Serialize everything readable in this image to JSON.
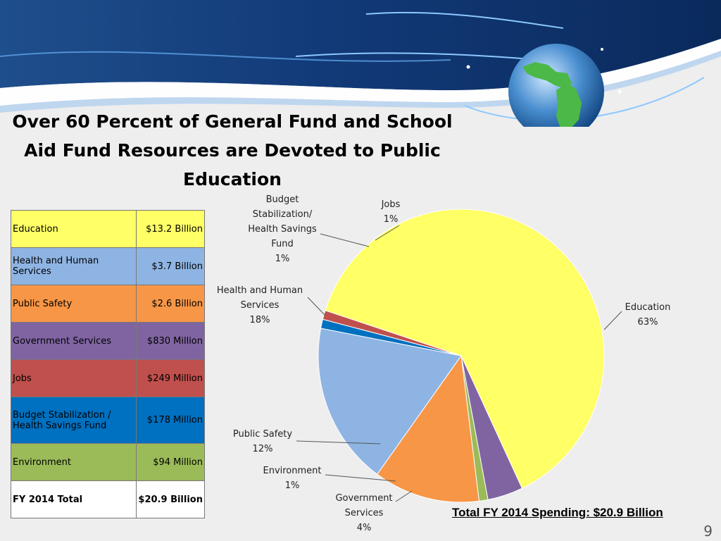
{
  "title": "Over 60 Percent of General Fund and School Aid Fund Resources are Devoted to Public Education",
  "table": {
    "rows": [
      {
        "label": "Education",
        "amount": "$13.2 Billion",
        "color": "#ffff66"
      },
      {
        "label": "Health and Human Services",
        "amount": "$3.7 Billion",
        "color": "#8eb4e3"
      },
      {
        "label": "Public Safety",
        "amount": "$2.6 Billion",
        "color": "#f79646"
      },
      {
        "label": "Government Services",
        "amount": "$830 Million",
        "color": "#8064a2"
      },
      {
        "label": "Jobs",
        "amount": "$249 Million",
        "color": "#c0504d"
      },
      {
        "label": "Budget Stabilization / Health Savings Fund",
        "amount": "$178 Million",
        "color": "#0070c0"
      },
      {
        "label": "Environment",
        "amount": "$94 Million",
        "color": "#9bbb59"
      }
    ],
    "total": {
      "label": "FY 2014 Total",
      "amount": "$20.9 Billion"
    }
  },
  "chart_data": {
    "type": "pie",
    "slices": [
      {
        "name": "Education",
        "label": "Education\n63%",
        "percent": 63,
        "color": "#ffff66"
      },
      {
        "name": "Government Services",
        "label": "Government\nServices\n4%",
        "percent": 4,
        "color": "#8064a2"
      },
      {
        "name": "Environment",
        "label": "Environment\n1%",
        "percent": 1,
        "color": "#9bbb59"
      },
      {
        "name": "Public Safety",
        "label": "Public Safety\n12%",
        "percent": 12,
        "color": "#f79646"
      },
      {
        "name": "Health and Human Services",
        "label": "Health and Human\nServices\n18%",
        "percent": 18,
        "color": "#8eb4e3"
      },
      {
        "name": "Budget Stabilization/Health Savings Fund",
        "label": "Budget\nStabilization/\nHealth Savings\nFund\n1%",
        "percent": 1,
        "color": "#0070c0"
      },
      {
        "name": "Jobs",
        "label": "Jobs\n1%",
        "percent": 1,
        "color": "#c0504d"
      }
    ]
  },
  "total_spending": "Total FY 2014 Spending:  $20.9 Billion",
  "page_number": "9"
}
